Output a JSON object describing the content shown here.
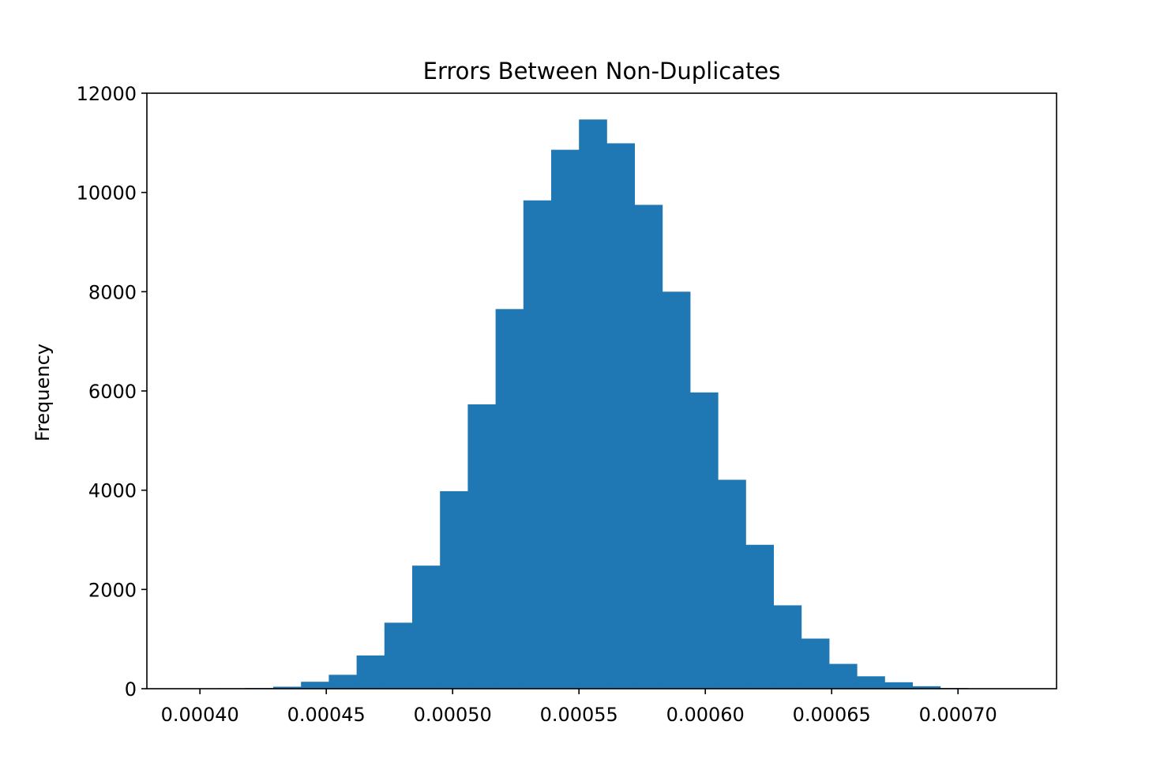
{
  "chart_data": {
    "type": "bar",
    "title": "Errors Between Non-Duplicates",
    "xlabel": "",
    "ylabel": "Frequency",
    "xlim": [
      0.000379,
      0.000739
    ],
    "ylim": [
      0,
      12000
    ],
    "xticks": [
      0.0004,
      0.00045,
      0.0005,
      0.00055,
      0.0006,
      0.00065,
      0.0007
    ],
    "xtick_labels": [
      "0.00040",
      "0.00045",
      "0.00050",
      "0.00055",
      "0.00060",
      "0.00065",
      "0.00070"
    ],
    "yticks": [
      0,
      2000,
      4000,
      6000,
      8000,
      10000,
      12000
    ],
    "ytick_labels": [
      "0",
      "2000",
      "4000",
      "6000",
      "8000",
      "10000",
      "12000"
    ],
    "bin_start": 0.000396,
    "bin_width": 1.1e-05,
    "values": [
      5,
      10,
      15,
      40,
      140,
      280,
      670,
      1330,
      2480,
      3980,
      5730,
      7650,
      9840,
      10860,
      11470,
      10990,
      9750,
      8000,
      5970,
      4210,
      2900,
      1680,
      1010,
      500,
      250,
      130,
      50,
      15,
      5,
      2
    ],
    "grid": false,
    "legend": "none",
    "bar_color": "#1f77b4"
  }
}
